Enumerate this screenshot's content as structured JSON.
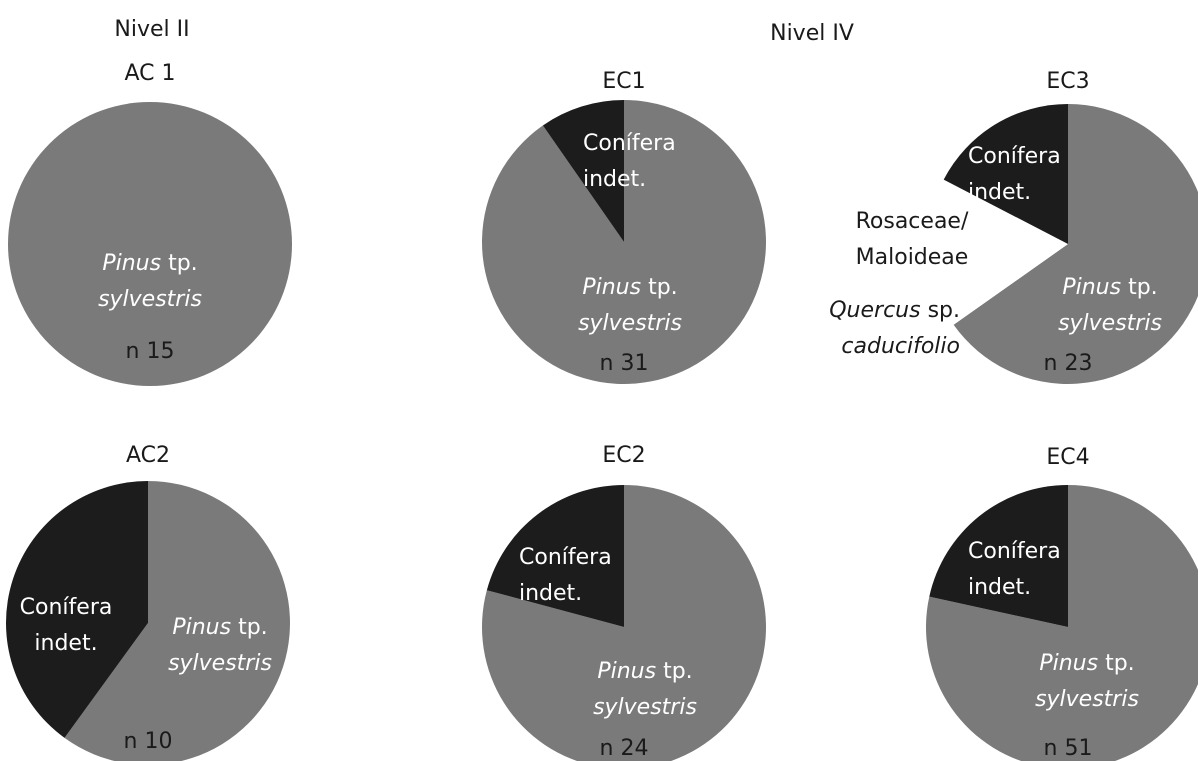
{
  "headers": [
    {
      "key": "nivel2",
      "text": "Nivel II"
    },
    {
      "key": "nivel4",
      "text": "Nivel IV"
    }
  ],
  "colors": {
    "pinus": "#7a7a7a",
    "conifera": "#1c1c1c",
    "white_slice": "#ffffff",
    "text_dark": "#1a1a1a",
    "text_light": "#ffffff"
  },
  "chart_data": [
    {
      "type": "pie",
      "title": "AC 1",
      "n_label": "n 15",
      "n": 15,
      "slices": [
        {
          "label_parts": [
            {
              "text": "Pinus",
              "italic": true
            },
            {
              "text": " tp.",
              "italic": false
            }
          ],
          "label_line2": "sylvestris",
          "value": 15,
          "color": "#7a7a7a"
        }
      ]
    },
    {
      "type": "pie",
      "title": "EC1",
      "n_label": "n 31",
      "n": 31,
      "slices": [
        {
          "label_parts": [
            {
              "text": "Pinus",
              "italic": true
            },
            {
              "text": " tp.",
              "italic": false
            }
          ],
          "label_line2": "sylvestris",
          "value": 28,
          "color": "#7a7a7a"
        },
        {
          "label_parts": [
            {
              "text": "Conífera",
              "italic": false
            }
          ],
          "label_line2": "indet.",
          "value": 3,
          "color": "#1c1c1c"
        }
      ]
    },
    {
      "type": "pie",
      "title": "EC3",
      "n_label": "n 23",
      "n": 23,
      "slices": [
        {
          "label_parts": [
            {
              "text": "Pinus",
              "italic": true
            },
            {
              "text": " tp.",
              "italic": false
            }
          ],
          "label_line2": "sylvestris",
          "value": 15,
          "color": "#7a7a7a"
        },
        {
          "label_parts": [
            {
              "text": "Quercus",
              "italic": true
            },
            {
              "text": " sp.",
              "italic": false
            }
          ],
          "label_line2": "caducifolio",
          "value": 1,
          "color": "#ffffff"
        },
        {
          "label_parts": [
            {
              "text": "Rosaceae/",
              "italic": false
            }
          ],
          "label_line2": "Maloideae",
          "value": 3,
          "color": "#ffffff"
        },
        {
          "label_parts": [
            {
              "text": "Conífera",
              "italic": false
            }
          ],
          "label_line2": "indet.",
          "value": 4,
          "color": "#1c1c1c"
        }
      ]
    },
    {
      "type": "pie",
      "title": "AC2",
      "n_label": "n 10",
      "n": 10,
      "slices": [
        {
          "label_parts": [
            {
              "text": "Pinus",
              "italic": true
            },
            {
              "text": " tp.",
              "italic": false
            }
          ],
          "label_line2": "sylvestris",
          "value": 6,
          "color": "#7a7a7a"
        },
        {
          "label_parts": [
            {
              "text": "Conífera",
              "italic": false
            }
          ],
          "label_line2": "indet.",
          "value": 4,
          "color": "#1c1c1c"
        }
      ]
    },
    {
      "type": "pie",
      "title": "EC2",
      "n_label": "n 24",
      "n": 24,
      "slices": [
        {
          "label_parts": [
            {
              "text": "Pinus",
              "italic": true
            },
            {
              "text": " tp.",
              "italic": false
            }
          ],
          "label_line2": "sylvestris",
          "value": 19,
          "color": "#7a7a7a"
        },
        {
          "label_parts": [
            {
              "text": "Conífera",
              "italic": false
            }
          ],
          "label_line2": "indet.",
          "value": 5,
          "color": "#1c1c1c"
        }
      ]
    },
    {
      "type": "pie",
      "title": "EC4",
      "n_label": "n 51",
      "n": 51,
      "slices": [
        {
          "label_parts": [
            {
              "text": "Pinus",
              "italic": true
            },
            {
              "text": " tp.",
              "italic": false
            }
          ],
          "label_line2": "sylvestris",
          "value": 40,
          "color": "#7a7a7a"
        },
        {
          "label_parts": [
            {
              "text": "Conífera",
              "italic": false
            }
          ],
          "label_line2": "indet.",
          "value": 11,
          "color": "#1c1c1c"
        }
      ]
    }
  ]
}
